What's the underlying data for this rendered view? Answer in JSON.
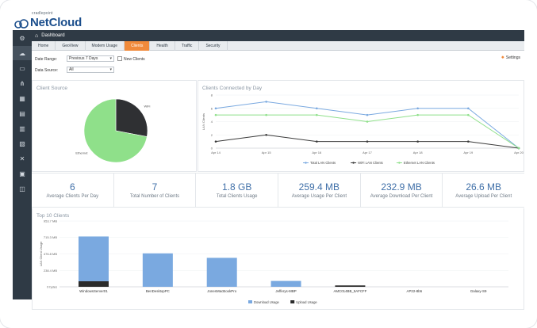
{
  "brand": {
    "company": "cradlepoint",
    "product": "NetCloud"
  },
  "breadcrumb": {
    "label": "Dashboard"
  },
  "tabs": [
    {
      "label": "Home",
      "active": false
    },
    {
      "label": "GeoView",
      "active": false
    },
    {
      "label": "Modem Usage",
      "active": false
    },
    {
      "label": "Clients",
      "active": true
    },
    {
      "label": "Health",
      "active": false
    },
    {
      "label": "Traffic",
      "active": false
    },
    {
      "label": "Security",
      "active": false
    }
  ],
  "filters": {
    "date_range_label": "Date Range:",
    "date_range_value": "Previous 7 Days",
    "new_clients_label": "New Clients",
    "data_source_label": "Data Source:",
    "data_source_value": "All",
    "settings_label": "Settings"
  },
  "colors": {
    "sidebar": "#2f3a45",
    "accent": "#f08a3b",
    "total": "#7aa9e0",
    "wifi": "#3a3a3a",
    "ethernet": "#8fe08a",
    "value_blue": "#3f6fa8",
    "upload_bar": "#2b2b2b"
  },
  "stats": [
    {
      "value": "6",
      "label": "Average Clients Per Day"
    },
    {
      "value": "7",
      "label": "Total Number of Clients"
    },
    {
      "value": "1.8 GB",
      "label": "Total Clients Usage"
    },
    {
      "value": "259.4 MB",
      "label": "Average Usage Per Client"
    },
    {
      "value": "232.9 MB",
      "label": "Average Download Per Client"
    },
    {
      "value": "26.6 MB",
      "label": "Average Upload Per Client"
    }
  ],
  "chart_data": [
    {
      "type": "pie",
      "title": "Client Source",
      "categories": [
        "WiFi",
        "Ethernet"
      ],
      "values": [
        28,
        72
      ],
      "colors": [
        "#2f3033",
        "#8fe08a"
      ]
    },
    {
      "type": "line",
      "title": "Clients Connected by Day",
      "ylabel": "LAN Clients",
      "x": [
        "Apr 14",
        "Apr 15",
        "Apr 16",
        "Apr 17",
        "Apr 18",
        "Apr 19",
        "Apr 20"
      ],
      "ylim": [
        0,
        8
      ],
      "yticks": [
        0,
        2,
        4,
        6,
        8
      ],
      "series": [
        {
          "name": "Total LAN Clients",
          "values": [
            6,
            7,
            6,
            5,
            6,
            6,
            0
          ]
        },
        {
          "name": "WiFi LAN Clients",
          "values": [
            1,
            2,
            1,
            1,
            1,
            1,
            0
          ]
        },
        {
          "name": "Ethernet LAN Clients",
          "values": [
            5,
            5,
            5,
            4,
            5,
            5,
            0
          ]
        }
      ],
      "legend": "bottom"
    },
    {
      "type": "bar",
      "title": "Top 10 Clients",
      "ylabel": "LAN Client Usage",
      "yticks": [
        "0 bytes",
        "238.4 MB",
        "476.8 MB",
        "715.3 MB",
        "953.7 MB"
      ],
      "ylim": [
        0,
        953.7
      ],
      "categories": [
        "WindowsServer01",
        "BenDesktopPC",
        "JonesMacBookPro",
        "Jefferys-MBP",
        "AMC014BB_5AFCFF",
        "AP22-8b6",
        "Galaxy-S9"
      ],
      "series": [
        {
          "name": "Download Usage",
          "values": [
            730,
            485,
            420,
            85,
            0,
            0,
            0
          ]
        },
        {
          "name": "Upload Usage",
          "values": [
            80,
            0,
            0,
            0,
            20,
            0,
            0
          ]
        }
      ],
      "legend": "bottom"
    }
  ]
}
